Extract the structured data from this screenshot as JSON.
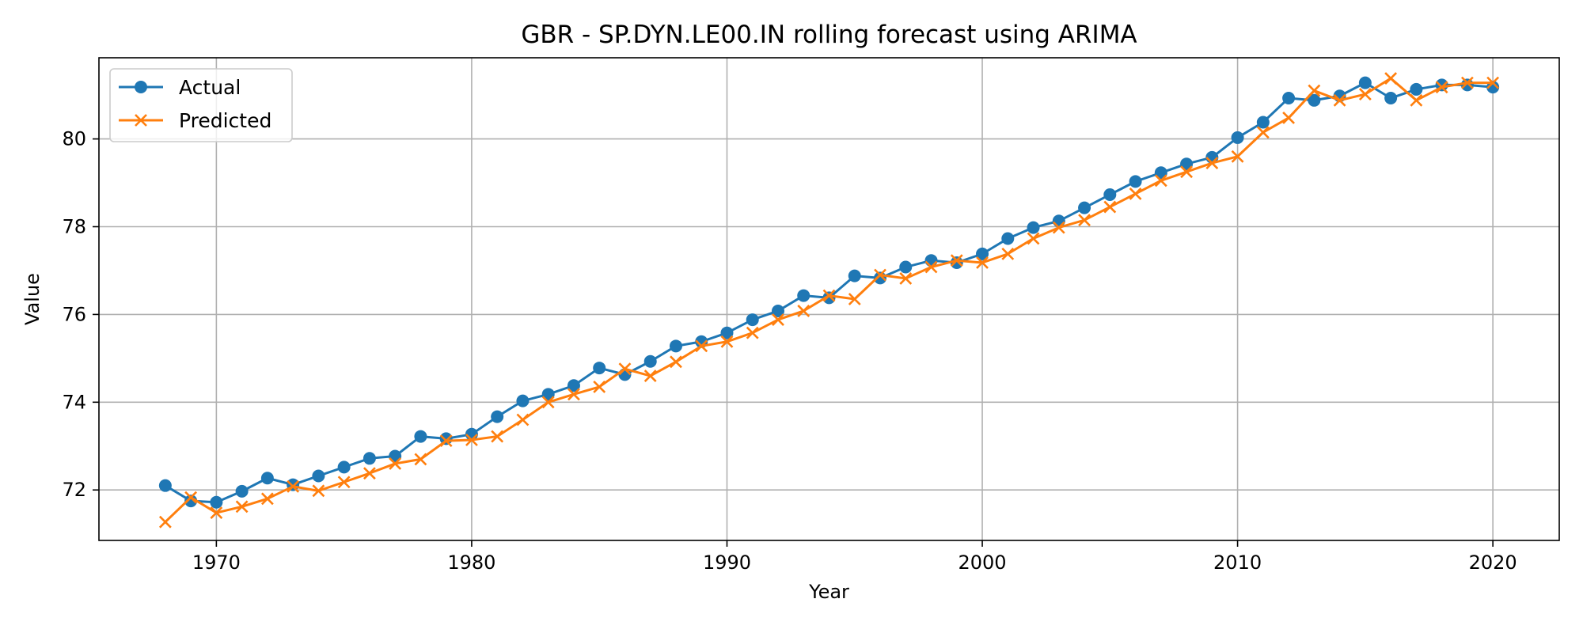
{
  "chart_data": {
    "type": "line",
    "title": "GBR - SP.DYN.LE00.IN rolling forecast using ARIMA",
    "xlabel": "Year",
    "ylabel": "Value",
    "xlim": [
      1965.4,
      2022.6
    ],
    "ylim": [
      70.85,
      81.85
    ],
    "xticks": [
      1970,
      1980,
      1990,
      2000,
      2010,
      2020
    ],
    "yticks": [
      72,
      74,
      76,
      78,
      80
    ],
    "grid": true,
    "legend_position": "top-left",
    "x": [
      1968,
      1969,
      1970,
      1971,
      1972,
      1973,
      1974,
      1975,
      1976,
      1977,
      1978,
      1979,
      1980,
      1981,
      1982,
      1983,
      1984,
      1985,
      1986,
      1987,
      1988,
      1989,
      1990,
      1991,
      1992,
      1993,
      1994,
      1995,
      1996,
      1997,
      1998,
      1999,
      2000,
      2001,
      2002,
      2003,
      2004,
      2005,
      2006,
      2007,
      2008,
      2009,
      2010,
      2011,
      2012,
      2013,
      2014,
      2015,
      2016,
      2017,
      2018,
      2019,
      2020
    ],
    "series": [
      {
        "name": "Actual",
        "color": "#1f77b4",
        "marker": "circle",
        "values": [
          72.1,
          71.75,
          71.72,
          71.97,
          72.27,
          72.12,
          72.32,
          72.52,
          72.72,
          72.77,
          73.22,
          73.17,
          73.27,
          73.67,
          74.03,
          74.18,
          74.38,
          74.78,
          74.63,
          74.93,
          75.28,
          75.38,
          75.58,
          75.88,
          76.08,
          76.43,
          76.38,
          76.88,
          76.83,
          77.08,
          77.23,
          77.18,
          77.38,
          77.73,
          77.98,
          78.13,
          78.43,
          78.73,
          79.03,
          79.23,
          79.43,
          79.58,
          80.03,
          80.38,
          80.93,
          80.88,
          80.98,
          81.28,
          80.93,
          81.13,
          81.23,
          81.23,
          81.18
        ]
      },
      {
        "name": "Predicted",
        "color": "#ff7f0e",
        "marker": "x",
        "values": [
          71.27,
          71.83,
          71.48,
          71.62,
          71.8,
          72.08,
          71.98,
          72.18,
          72.38,
          72.6,
          72.7,
          73.12,
          73.14,
          73.22,
          73.6,
          74.0,
          74.18,
          74.35,
          74.76,
          74.6,
          74.92,
          75.28,
          75.38,
          75.58,
          75.88,
          76.08,
          76.43,
          76.35,
          76.9,
          76.82,
          77.08,
          77.23,
          77.18,
          77.38,
          77.73,
          77.98,
          78.15,
          78.45,
          78.75,
          79.05,
          79.25,
          79.45,
          79.6,
          80.15,
          80.48,
          81.1,
          80.88,
          81.02,
          81.38,
          80.88,
          81.18,
          81.28,
          81.28
        ]
      }
    ]
  }
}
